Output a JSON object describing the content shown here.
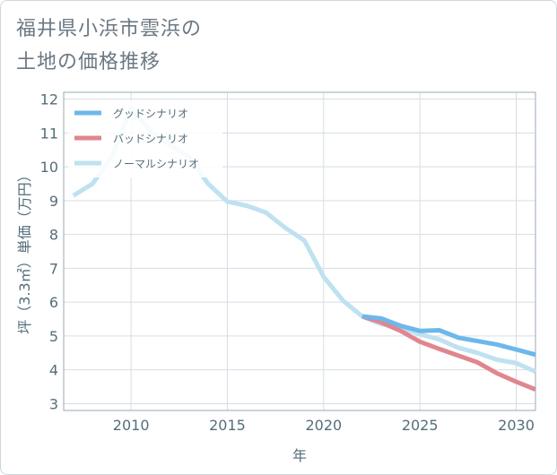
{
  "title_lines": [
    "福井県小浜市雲浜の",
    "土地の価格推移"
  ],
  "chart_data": {
    "type": "line",
    "xlabel": "年",
    "ylabel": "坪（3.3㎡）単価（万円）",
    "xlim": [
      2006.5,
      2031
    ],
    "ylim": [
      2.8,
      12.2
    ],
    "xticks": [
      2010,
      2015,
      2020,
      2025,
      2030
    ],
    "yticks": [
      3,
      4,
      5,
      6,
      7,
      8,
      9,
      10,
      11,
      12
    ],
    "grid": true,
    "legend_position": "top-left",
    "series": [
      {
        "name": "グッドシナリオ",
        "color": "#6cb8ea",
        "x": [
          2022,
          2023,
          2024,
          2025,
          2026,
          2027,
          2028,
          2029,
          2030,
          2031
        ],
        "y": [
          5.58,
          5.52,
          5.3,
          5.15,
          5.17,
          4.95,
          4.85,
          4.75,
          4.6,
          4.45
        ]
      },
      {
        "name": "バッドシナリオ",
        "color": "#e0868f",
        "x": [
          2022,
          2023,
          2024,
          2025,
          2026,
          2027,
          2028,
          2029,
          2030,
          2031
        ],
        "y": [
          5.58,
          5.4,
          5.15,
          4.83,
          4.62,
          4.42,
          4.22,
          3.9,
          3.65,
          3.42
        ]
      },
      {
        "name": "ノーマルシナリオ",
        "color": "#bfe1f0",
        "x": [
          2007,
          2008,
          2009,
          2010,
          2011,
          2012,
          2013,
          2014,
          2015,
          2016,
          2017,
          2018,
          2019,
          2020,
          2021,
          2022,
          2023,
          2024,
          2025,
          2026,
          2027,
          2028,
          2029,
          2030,
          2031
        ],
        "y": [
          9.15,
          9.5,
          10.3,
          11.75,
          11.05,
          10.65,
          10.3,
          9.5,
          8.97,
          8.85,
          8.65,
          8.2,
          7.82,
          6.75,
          6.05,
          5.58,
          5.35,
          5.25,
          5.05,
          4.9,
          4.65,
          4.5,
          4.3,
          4.2,
          3.95
        ]
      }
    ]
  }
}
